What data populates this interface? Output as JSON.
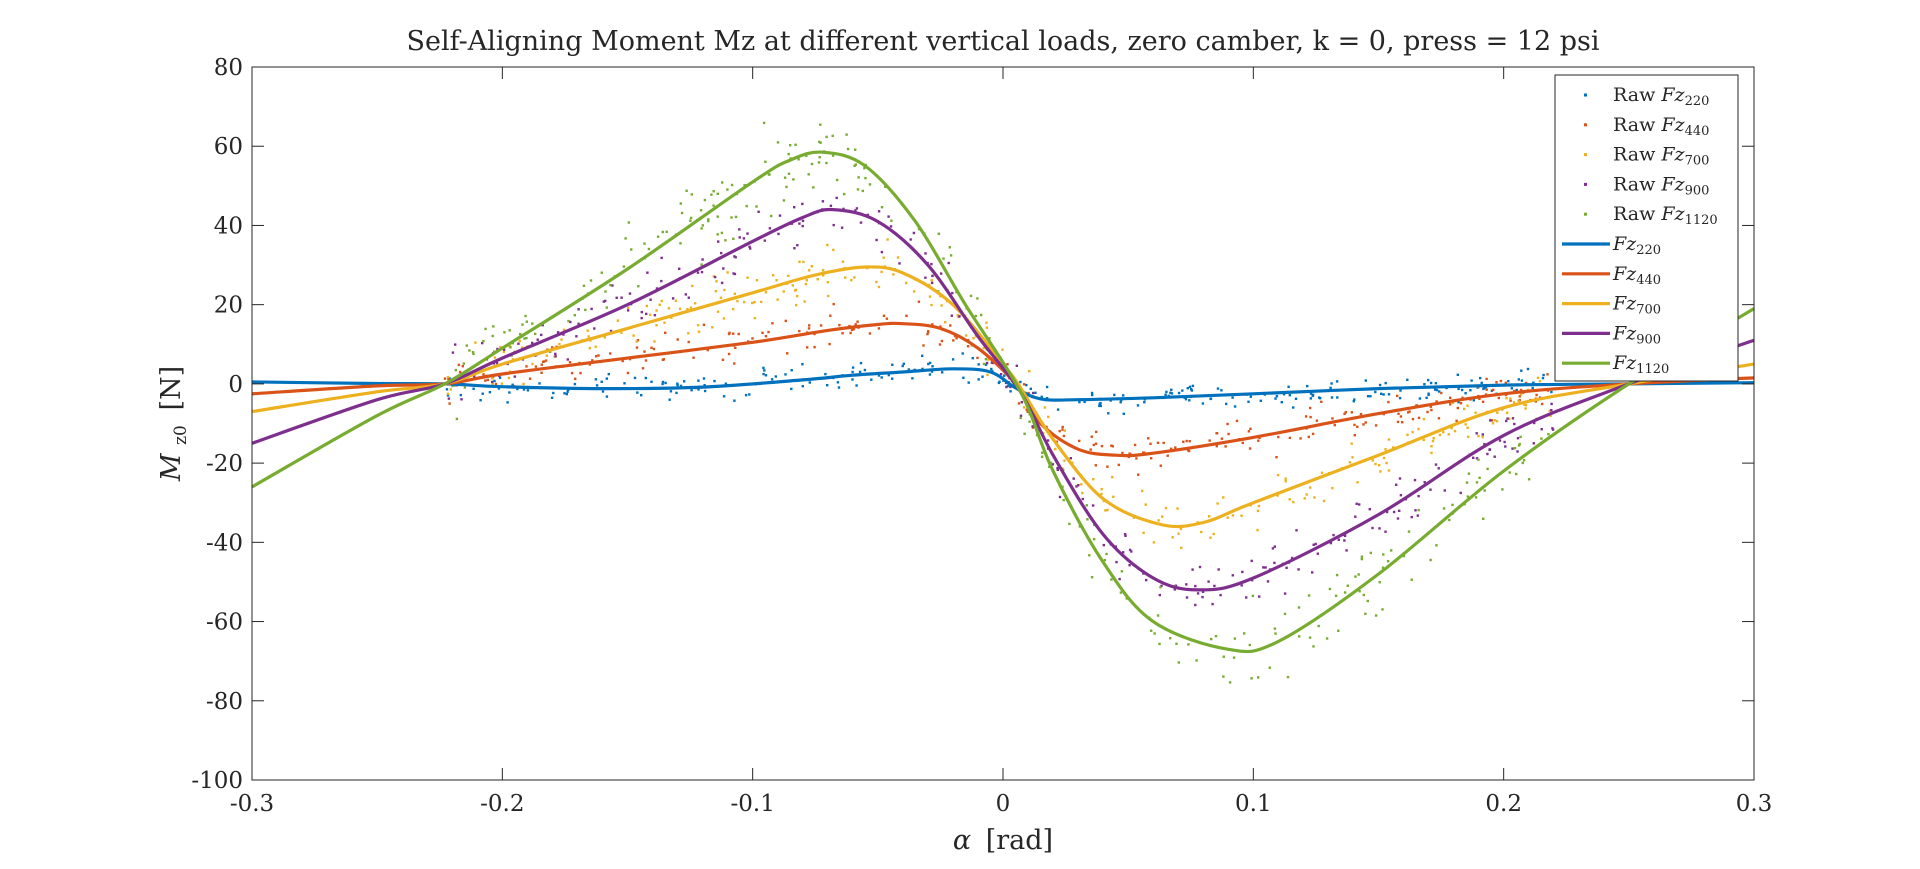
{
  "chart_data": {
    "type": "line",
    "title": "Self-Aligning Moment Mz at different vertical loads, zero camber, k = 0, press = 12 psi",
    "xlabel": {
      "symbol": "α",
      "unit": "[rad]"
    },
    "ylabel": {
      "main": "M",
      "sub": "z0",
      "unit": "[N]"
    },
    "xlim": [
      -0.3,
      0.3
    ],
    "ylim": [
      -100,
      80
    ],
    "xticks": [
      -0.3,
      -0.2,
      -0.1,
      0,
      0.1,
      0.2,
      0.3
    ],
    "yticks": [
      -100,
      -80,
      -60,
      -40,
      -20,
      0,
      20,
      40,
      60,
      80
    ],
    "xtick_labels": [
      "-0.3",
      "-0.2",
      "-0.1",
      "0",
      "0.1",
      "0.2",
      "0.3"
    ],
    "ytick_labels": [
      "-100",
      "-80",
      "-60",
      "-40",
      "-20",
      "0",
      "20",
      "40",
      "60",
      "80"
    ],
    "grid": false,
    "legend_position": "top-right",
    "raw_range": [
      -0.223,
      0.22
    ],
    "series": [
      {
        "name": "Fz220",
        "color": "#0072BD",
        "raw_legend": {
          "prefix": "Raw",
          "main": "Fz",
          "sub": "220"
        },
        "fit_legend": {
          "main": "Fz",
          "sub": "220"
        },
        "fit": {
          "x": [
            -0.3,
            -0.25,
            -0.223,
            -0.2,
            -0.16,
            -0.12,
            -0.08,
            -0.06,
            -0.04,
            -0.02,
            -0.005,
            0.005,
            0.015,
            0.03,
            0.06,
            0.1,
            0.15,
            0.2,
            0.25,
            0.3
          ],
          "y": [
            0.5,
            0.1,
            0,
            -0.7,
            -1.2,
            -0.8,
            1,
            2.2,
            3,
            3.8,
            3,
            -1,
            -3.8,
            -4,
            -3.5,
            -2.5,
            -1.2,
            -0.3,
            0,
            0.3
          ]
        }
      },
      {
        "name": "Fz440",
        "color": "#D95319",
        "raw_legend": {
          "prefix": "Raw",
          "main": "Fz",
          "sub": "440"
        },
        "fit_legend": {
          "main": "Fz",
          "sub": "440"
        },
        "fit": {
          "x": [
            -0.3,
            -0.25,
            -0.223,
            -0.2,
            -0.15,
            -0.1,
            -0.07,
            -0.05,
            -0.04,
            -0.025,
            -0.01,
            0.005,
            0.015,
            0.03,
            0.045,
            0.06,
            0.1,
            0.15,
            0.2,
            0.25,
            0.3
          ],
          "y": [
            -2.5,
            -0.5,
            0,
            2.5,
            6.5,
            10.5,
            13.5,
            15,
            15.2,
            14,
            9,
            0,
            -10,
            -16.5,
            -18,
            -17.5,
            -13.5,
            -7.5,
            -2.5,
            0,
            1.5
          ]
        }
      },
      {
        "name": "Fz700",
        "color": "#EDB120",
        "raw_legend": {
          "prefix": "Raw",
          "main": "Fz",
          "sub": "700"
        },
        "fit_legend": {
          "main": "Fz",
          "sub": "700"
        },
        "fit": {
          "x": [
            -0.3,
            -0.25,
            -0.223,
            -0.2,
            -0.15,
            -0.1,
            -0.075,
            -0.055,
            -0.04,
            -0.02,
            0,
            0.007,
            0.02,
            0.04,
            0.063,
            0.08,
            0.1,
            0.15,
            0.2,
            0.25,
            0.3
          ],
          "y": [
            -7,
            -2,
            0,
            5,
            14,
            23,
            27.5,
            29.5,
            28,
            20,
            5,
            -1,
            -14,
            -29,
            -35.5,
            -35,
            -30,
            -18,
            -6,
            0,
            5
          ]
        }
      },
      {
        "name": "Fz900",
        "color": "#7E2F8E",
        "raw_legend": {
          "prefix": "Raw",
          "main": "Fz",
          "sub": "900"
        },
        "fit_legend": {
          "main": "Fz",
          "sub": "900"
        },
        "fit": {
          "x": [
            -0.3,
            -0.25,
            -0.223,
            -0.2,
            -0.15,
            -0.1,
            -0.08,
            -0.068,
            -0.05,
            -0.03,
            -0.01,
            0.007,
            0.02,
            0.04,
            0.06,
            0.078,
            0.1,
            0.15,
            0.2,
            0.25,
            0.3
          ],
          "y": [
            -15,
            -4,
            0,
            6.5,
            20,
            36,
            42,
            44,
            41,
            30,
            12,
            -2,
            -18,
            -38,
            -49,
            -52,
            -49,
            -33,
            -13,
            0,
            11
          ]
        }
      },
      {
        "name": "Fz1120",
        "color": "#77AC30",
        "raw_legend": {
          "prefix": "Raw",
          "main": "Fz",
          "sub": "1120"
        },
        "fit_legend": {
          "main": "Fz",
          "sub": "1120"
        },
        "fit": {
          "x": [
            -0.3,
            -0.25,
            -0.223,
            -0.2,
            -0.15,
            -0.1,
            -0.085,
            -0.072,
            -0.055,
            -0.035,
            -0.015,
            0.007,
            0.02,
            0.04,
            0.06,
            0.09,
            0.11,
            0.15,
            0.2,
            0.25,
            0.3
          ],
          "y": [
            -26,
            -8,
            0,
            9,
            29,
            51,
            56.5,
            58.5,
            55,
            41,
            20,
            -2,
            -22,
            -45,
            -60,
            -67,
            -65,
            -48,
            -22,
            0,
            19
          ]
        }
      }
    ]
  }
}
